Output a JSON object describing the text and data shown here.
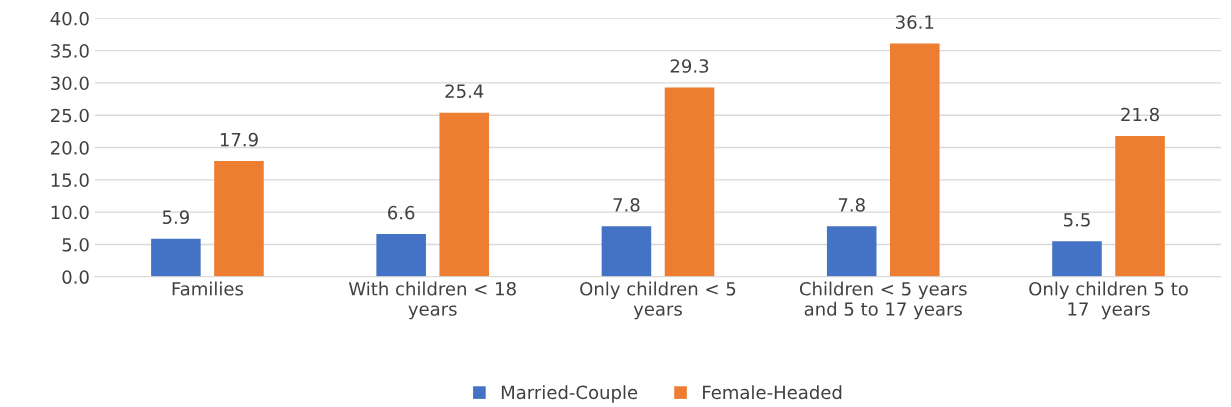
{
  "chart_data": {
    "type": "bar",
    "categories": [
      "Families",
      "With children < 18\nyears",
      "Only children < 5\nyears",
      "Children < 5 years\nand 5 to 17 years",
      "Only children 5 to\n17  years"
    ],
    "series": [
      {
        "name": "Married-Couple",
        "color": "#4472c4",
        "values": [
          5.9,
          6.6,
          7.8,
          7.8,
          5.5
        ]
      },
      {
        "name": "Female-Headed",
        "color": "#ed7d31",
        "values": [
          17.9,
          25.4,
          29.3,
          36.1,
          21.8
        ]
      }
    ],
    "ylim": [
      0,
      40
    ],
    "yticks": [
      {
        "value": 0,
        "label": "0.0"
      },
      {
        "value": 5,
        "label": "5.0"
      },
      {
        "value": 10,
        "label": "10.0"
      },
      {
        "value": 15,
        "label": "15.0"
      },
      {
        "value": 20,
        "label": "20.0"
      },
      {
        "value": 25,
        "label": "25.0"
      },
      {
        "value": 30,
        "label": "30.0"
      },
      {
        "value": 35,
        "label": "35.0"
      },
      {
        "value": 40,
        "label": "40.0"
      }
    ],
    "grid": "y",
    "legend": "bottom",
    "data_labels": true
  }
}
